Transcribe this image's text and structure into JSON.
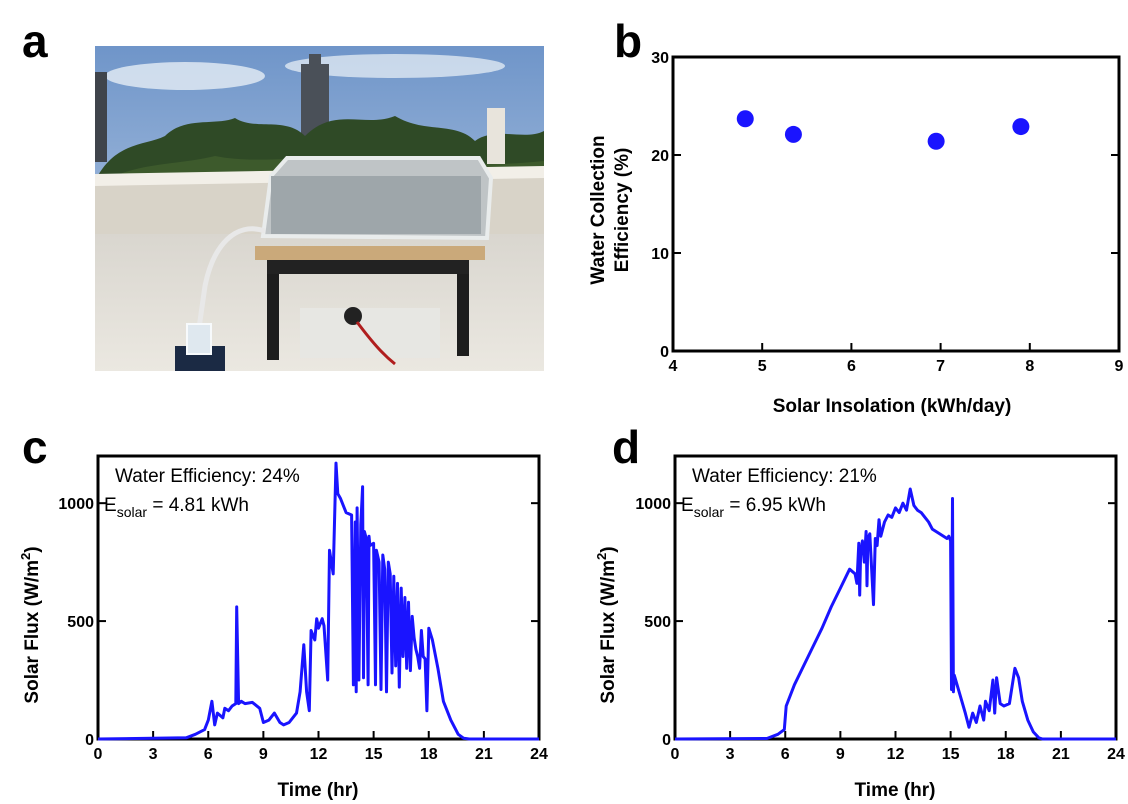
{
  "panels": {
    "a": "a",
    "b": "b",
    "c": "c",
    "d": "d"
  },
  "photo": {
    "description_icon": "rooftop-solar-water-collector-photo-icon"
  },
  "colors": {
    "series": "#1a14ff",
    "axis": "#000000"
  },
  "chart_data": [
    {
      "id": "b",
      "type": "scatter",
      "xlabel": "Solar Insolation (kWh/day)",
      "ylabel_lines": [
        "Water Collection",
        "Efficiency (%)"
      ],
      "xlim": [
        4,
        9
      ],
      "ylim": [
        0,
        30
      ],
      "xticks": [
        4,
        5,
        6,
        7,
        8,
        9
      ],
      "yticks": [
        0,
        10,
        20,
        30
      ],
      "points": [
        {
          "x": 4.81,
          "y": 23.7
        },
        {
          "x": 5.35,
          "y": 22.1
        },
        {
          "x": 6.95,
          "y": 21.4
        },
        {
          "x": 7.9,
          "y": 22.9
        }
      ],
      "grid": false
    },
    {
      "id": "c",
      "type": "line",
      "xlabel": "Time (hr)",
      "ylabel": "Solar Flux (W/m",
      "ylabel_sup": "2",
      "ylabel_end": ")",
      "xlim": [
        0,
        24
      ],
      "ylim": [
        0,
        1200
      ],
      "xticks": [
        0,
        3,
        6,
        9,
        12,
        15,
        18,
        21,
        24
      ],
      "yticks": [
        0,
        500,
        1000
      ],
      "annotation": {
        "line1": "Water Efficiency: 24%",
        "line2_prefix": "E",
        "line2_sub": "solar",
        "line2_rest": " = 4.81 kWh"
      },
      "x": [
        0,
        4.8,
        5.3,
        5.8,
        6.0,
        6.2,
        6.35,
        6.5,
        6.8,
        6.9,
        7.1,
        7.3,
        7.5,
        7.55,
        7.65,
        7.8,
        8.0,
        8.4,
        8.8,
        9.0,
        9.3,
        9.6,
        9.9,
        10.1,
        10.4,
        10.8,
        11.0,
        11.2,
        11.35,
        11.5,
        11.6,
        11.8,
        11.9,
        12.0,
        12.2,
        12.3,
        12.5,
        12.6,
        12.8,
        12.95,
        13.05,
        13.2,
        13.5,
        13.8,
        13.9,
        14.0,
        14.05,
        14.1,
        14.2,
        14.3,
        14.4,
        14.45,
        14.5,
        14.6,
        14.7,
        14.75,
        14.8,
        15.0,
        15.1,
        15.15,
        15.3,
        15.4,
        15.5,
        15.6,
        15.7,
        15.8,
        15.9,
        16.0,
        16.1,
        16.2,
        16.3,
        16.4,
        16.5,
        16.6,
        16.7,
        16.8,
        16.9,
        17.0,
        17.1,
        17.2,
        17.3,
        17.4,
        17.5,
        17.6,
        17.7,
        17.8,
        17.9,
        18.0,
        18.2,
        18.5,
        18.8,
        19.2,
        19.6,
        19.9,
        20.2,
        24
      ],
      "y": [
        0,
        5,
        20,
        40,
        80,
        160,
        60,
        110,
        90,
        130,
        120,
        140,
        150,
        560,
        150,
        160,
        150,
        155,
        130,
        70,
        80,
        110,
        70,
        60,
        70,
        110,
        200,
        400,
        200,
        120,
        460,
        420,
        510,
        470,
        510,
        480,
        250,
        800,
        700,
        1170,
        1040,
        1020,
        960,
        950,
        230,
        920,
        200,
        980,
        250,
        910,
        1070,
        260,
        880,
        850,
        230,
        860,
        820,
        830,
        230,
        800,
        750,
        210,
        780,
        720,
        200,
        750,
        700,
        280,
        690,
        310,
        660,
        220,
        640,
        350,
        600,
        300,
        580,
        290,
        520,
        430,
        380,
        350,
        300,
        460,
        350,
        340,
        120,
        470,
        420,
        300,
        160,
        80,
        20,
        3,
        0,
        0
      ],
      "grid": false
    },
    {
      "id": "d",
      "type": "line",
      "xlabel": "Time (hr)",
      "ylabel": "Solar Flux (W/m",
      "ylabel_sup": "2",
      "ylabel_end": ")",
      "xlim": [
        0,
        24
      ],
      "ylim": [
        0,
        1200
      ],
      "xticks": [
        0,
        3,
        6,
        9,
        12,
        15,
        18,
        21,
        24
      ],
      "yticks": [
        0,
        500,
        1000
      ],
      "annotation": {
        "line1": "Water Efficiency: 21%",
        "line2_prefix": "E",
        "line2_sub": "solar",
        "line2_rest": " = 6.95 kWh"
      },
      "x": [
        0,
        5.0,
        5.6,
        5.95,
        6.05,
        6.5,
        7.0,
        7.5,
        8.0,
        8.5,
        9.0,
        9.5,
        9.8,
        9.9,
        10.0,
        10.05,
        10.1,
        10.2,
        10.3,
        10.4,
        10.45,
        10.5,
        10.6,
        10.8,
        10.9,
        11.0,
        11.1,
        11.2,
        11.4,
        11.6,
        11.8,
        12.0,
        12.2,
        12.4,
        12.6,
        12.8,
        13.0,
        13.2,
        13.4,
        13.6,
        13.8,
        14.0,
        14.4,
        14.8,
        14.9,
        15.0,
        15.05,
        15.1,
        15.15,
        15.2,
        15.5,
        15.8,
        16.0,
        16.2,
        16.4,
        16.6,
        16.8,
        16.9,
        17.1,
        17.3,
        17.4,
        17.5,
        17.7,
        17.9,
        18.2,
        18.5,
        18.7,
        18.9,
        19.2,
        19.5,
        19.8,
        20.0,
        24
      ],
      "y": [
        0,
        2,
        20,
        40,
        140,
        230,
        310,
        390,
        470,
        560,
        640,
        720,
        700,
        660,
        830,
        610,
        780,
        840,
        750,
        880,
        650,
        850,
        870,
        570,
        850,
        820,
        930,
        860,
        920,
        950,
        940,
        980,
        960,
        1000,
        970,
        1060,
        990,
        970,
        960,
        940,
        920,
        890,
        870,
        850,
        860,
        840,
        210,
        1020,
        200,
        270,
        190,
        110,
        50,
        110,
        70,
        140,
        80,
        160,
        120,
        250,
        110,
        260,
        150,
        140,
        150,
        300,
        260,
        160,
        80,
        30,
        5,
        0,
        0
      ],
      "grid": false
    }
  ]
}
